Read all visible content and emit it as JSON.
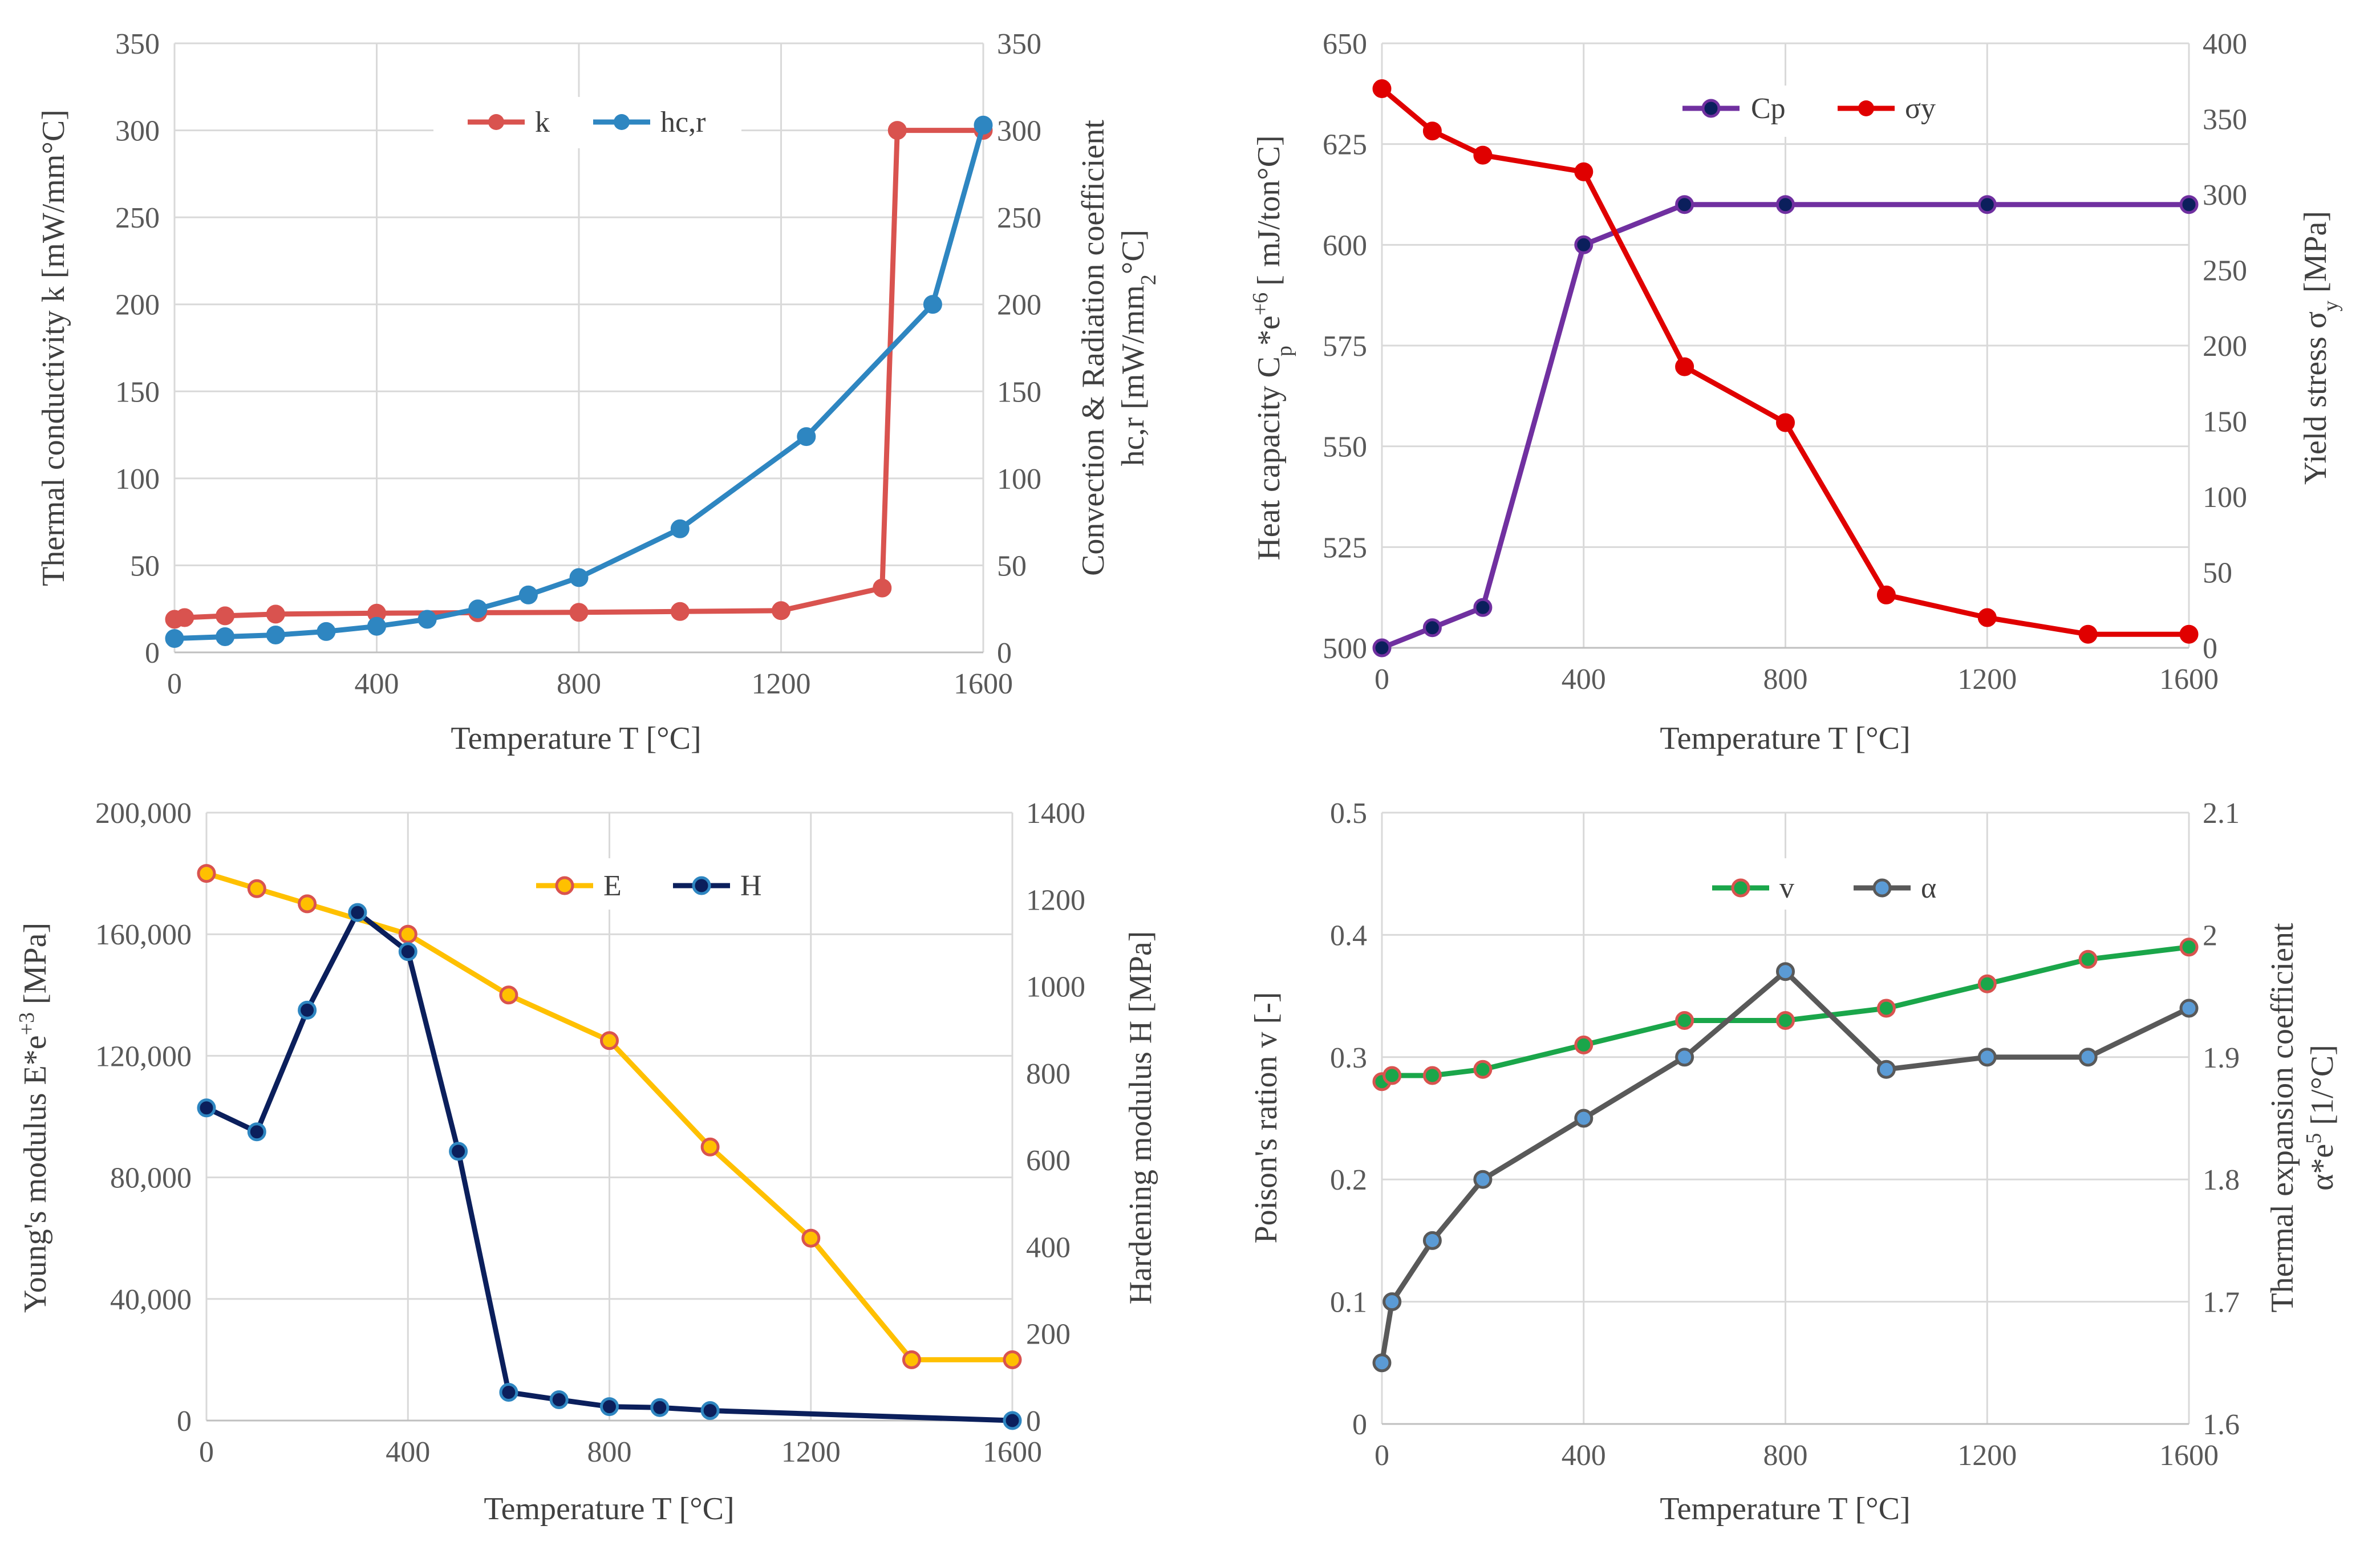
{
  "colors": {
    "k": "#d9534f",
    "hcr": "#2e86c1",
    "cp": "#7030a0",
    "sy": "#e00000",
    "E_line": "#ffc000",
    "E_marker_edge": "#d9534f",
    "H": "#0b1f5c",
    "H_marker_edge": "#2e86c1",
    "v_line": "#1aa64a",
    "v_marker_edge": "#d9534f",
    "alpha_line": "#595959",
    "alpha_marker_fill": "#5b9bd5"
  },
  "chart_data": [
    {
      "id": "top-left",
      "type": "line",
      "xlabel": "Temperature T [°C]",
      "xlim": [
        0,
        1600
      ],
      "xticks": [
        "0",
        "400",
        "800",
        "1200",
        "1600"
      ],
      "xtick_values": [
        0,
        400,
        800,
        1200,
        1600
      ],
      "ylabel_left": "Thermal conductivity k [mW/mm°C]",
      "ylim_left": [
        0,
        350
      ],
      "yticks_left": [
        "0",
        "50",
        "100",
        "150",
        "200",
        "250",
        "300",
        "350"
      ],
      "ylabel_right_lines": [
        "Convection & Radiation coefficient",
        "hc,r [mW/mm",
        "2",
        "°C]"
      ],
      "ylim_right": [
        0,
        350
      ],
      "yticks_right": [
        "0",
        "50",
        "100",
        "150",
        "200",
        "250",
        "300",
        "350"
      ],
      "legend_position": "top-center",
      "series": [
        {
          "name": "k",
          "axis": "left",
          "color_key": "k",
          "x": [
            0,
            20,
            100,
            200,
            400,
            600,
            800,
            1000,
            1200,
            1400,
            1430,
            1600
          ],
          "y": [
            19,
            20,
            21,
            22,
            22.5,
            22.8,
            23,
            23.5,
            24,
            37,
            300,
            300
          ]
        },
        {
          "name": "hc,r",
          "axis": "right",
          "color_key": "hcr",
          "x": [
            0,
            100,
            200,
            300,
            400,
            500,
            600,
            700,
            800,
            1000,
            1250,
            1500,
            1600
          ],
          "y": [
            8,
            9,
            10,
            12,
            15,
            19,
            25,
            33,
            43,
            71,
            124,
            200,
            303
          ]
        }
      ]
    },
    {
      "id": "top-right",
      "type": "line",
      "xlabel": "Temperature T [°C]",
      "xlim": [
        0,
        1600
      ],
      "xticks": [
        "0",
        "400",
        "800",
        "1200",
        "1600"
      ],
      "xtick_values": [
        0,
        400,
        800,
        1200,
        1600
      ],
      "ylabel_left_parts": [
        "Heat capacity C",
        "p",
        "*e",
        "+6",
        "[ mJ/ton°C]"
      ],
      "ylim_left": [
        500,
        650
      ],
      "yticks_left": [
        "500",
        "525",
        "550",
        "575",
        "600",
        "625",
        "650"
      ],
      "ylabel_right_parts": [
        "Yield stress σ",
        "y",
        " [MPa]"
      ],
      "ylim_right": [
        0,
        400
      ],
      "yticks_right": [
        "0",
        "50",
        "100",
        "150",
        "200",
        "250",
        "300",
        "350",
        "400"
      ],
      "legend_position": "top-center",
      "series": [
        {
          "name": "Cp",
          "axis": "left",
          "color_key": "cp",
          "x": [
            0,
            100,
            200,
            400,
            600,
            800,
            1200,
            1600
          ],
          "y": [
            500,
            505,
            510,
            600,
            610,
            610,
            610,
            610
          ]
        },
        {
          "name": "σy",
          "axis": "right",
          "color_key": "sy",
          "x": [
            0,
            100,
            200,
            400,
            600,
            800,
            1000,
            1200,
            1400,
            1600
          ],
          "y": [
            370,
            342,
            326,
            315,
            186,
            149,
            35,
            20,
            9,
            9
          ]
        }
      ]
    },
    {
      "id": "bottom-left",
      "type": "line",
      "xlabel": "Temperature T [°C]",
      "xlim": [
        0,
        1600
      ],
      "xticks": [
        "0",
        "400",
        "800",
        "1200",
        "1600"
      ],
      "xtick_values": [
        0,
        400,
        800,
        1200,
        1600
      ],
      "ylabel_left_parts": [
        "Young's modulus E*e",
        "+3",
        " [MPa]"
      ],
      "ylim_left": [
        0,
        200000
      ],
      "yticks_left": [
        "0",
        "40,000",
        "80,000",
        "120,000",
        "160,000",
        "200,000"
      ],
      "ylabel_right": "Hardening modulus H [MPa]",
      "ylim_right": [
        0,
        1400
      ],
      "yticks_right": [
        "0",
        "200",
        "400",
        "600",
        "800",
        "1000",
        "1200",
        "1400"
      ],
      "legend_position": "top-center",
      "series": [
        {
          "name": "E",
          "axis": "left",
          "color_key": "E_line",
          "x": [
            0,
            100,
            200,
            400,
            600,
            800,
            1000,
            1200,
            1400,
            1600
          ],
          "y": [
            180000,
            175000,
            170000,
            160000,
            140000,
            125000,
            90000,
            60000,
            20000,
            20000
          ]
        },
        {
          "name": "H",
          "axis": "right",
          "color_key": "H",
          "x": [
            0,
            100,
            200,
            300,
            400,
            500,
            600,
            700,
            800,
            900,
            1000,
            1600
          ],
          "y": [
            720,
            665,
            945,
            1170,
            1080,
            620,
            65,
            48,
            32,
            30,
            23,
            0
          ]
        }
      ]
    },
    {
      "id": "bottom-right",
      "type": "line",
      "xlabel": "Temperature T [°C]",
      "xlim": [
        0,
        1600
      ],
      "xticks": [
        "0",
        "400",
        "800",
        "1200",
        "1600"
      ],
      "xtick_values": [
        0,
        400,
        800,
        1200,
        1600
      ],
      "ylabel_left": "Poison's ration v [-]",
      "ylim_left": [
        0,
        0.5
      ],
      "yticks_left": [
        "0",
        "0.1",
        "0.2",
        "0.3",
        "0.4",
        "0.5"
      ],
      "ylabel_right_lines": [
        "Thermal expansion coefficient",
        "α*e",
        "5",
        " [1/°C]"
      ],
      "ylim_right": [
        1.6,
        2.1
      ],
      "yticks_right": [
        "1.6",
        "1.7",
        "1.8",
        "1.9",
        "2",
        "2.1"
      ],
      "legend_position": "top-center",
      "series": [
        {
          "name": "v",
          "axis": "left",
          "color_key": "v_line",
          "x": [
            0,
            20,
            100,
            200,
            400,
            600,
            800,
            1000,
            1200,
            1400,
            1600
          ],
          "y": [
            0.28,
            0.285,
            0.285,
            0.29,
            0.31,
            0.33,
            0.33,
            0.34,
            0.36,
            0.38,
            0.39
          ]
        },
        {
          "name": "α",
          "axis": "right",
          "color_key": "alpha_line",
          "x": [
            0,
            20,
            100,
            200,
            400,
            600,
            800,
            1000,
            1200,
            1400,
            1600
          ],
          "y": [
            1.65,
            1.7,
            1.75,
            1.8,
            1.85,
            1.9,
            1.97,
            1.89,
            1.9,
            1.9,
            1.94
          ]
        }
      ]
    }
  ]
}
